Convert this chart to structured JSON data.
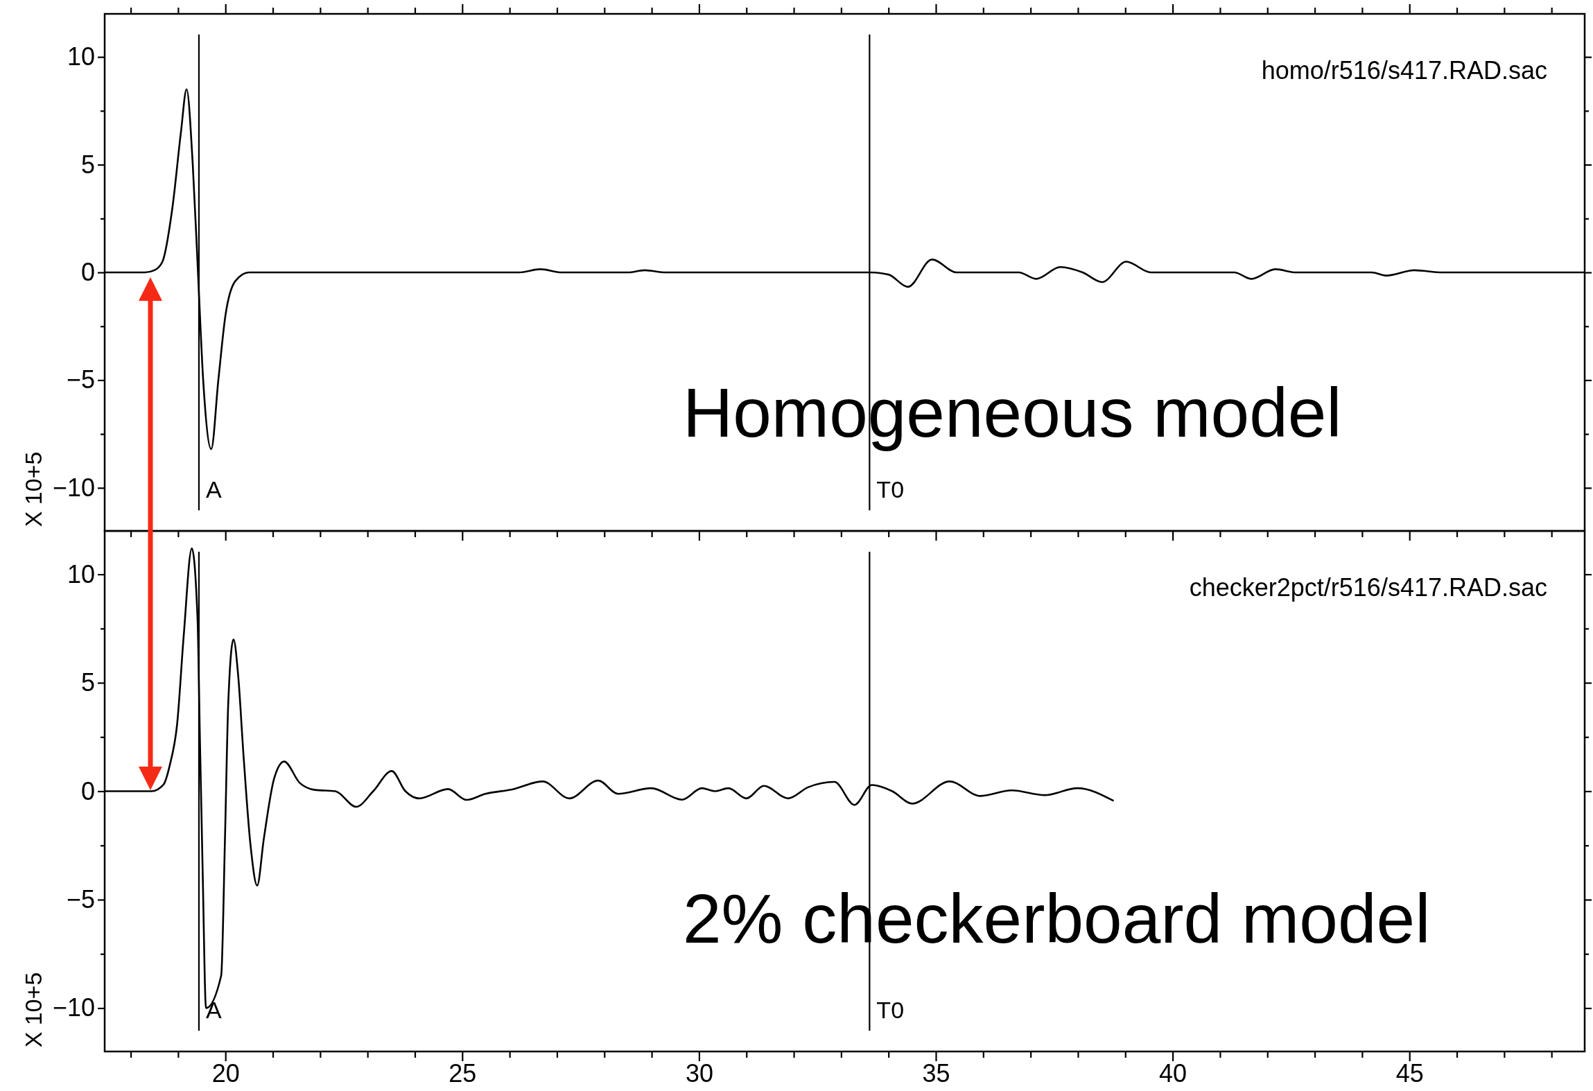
{
  "chart_data": [
    {
      "type": "line",
      "ylabel": "X 10+5",
      "tick_labels": "y",
      "xlim": [
        17.45,
        48.7
      ],
      "xticks": [
        {
          "value": 18,
          "label": null
        },
        {
          "value": 19,
          "label": null
        },
        20,
        {
          "value": 21,
          "label": null
        },
        {
          "value": 22,
          "label": null
        },
        {
          "value": 23,
          "label": null
        },
        {
          "value": 24,
          "label": null
        },
        25,
        {
          "value": 26,
          "label": null
        },
        {
          "value": 27,
          "label": null
        },
        {
          "value": 28,
          "label": null
        },
        {
          "value": 29,
          "label": null
        },
        30,
        {
          "value": 31,
          "label": null
        },
        {
          "value": 32,
          "label": null
        },
        {
          "value": 33,
          "label": null
        },
        {
          "value": 34,
          "label": null
        },
        35,
        {
          "value": 36,
          "label": null
        },
        {
          "value": 37,
          "label": null
        },
        {
          "value": 38,
          "label": null
        },
        {
          "value": 39,
          "label": null
        },
        40,
        {
          "value": 41,
          "label": null
        },
        {
          "value": 42,
          "label": null
        },
        {
          "value": 43,
          "label": null
        },
        {
          "value": 44,
          "label": null
        },
        45,
        {
          "value": 46,
          "label": null
        },
        {
          "value": 47,
          "label": null
        },
        {
          "value": 48,
          "label": null
        }
      ],
      "ylim": [
        -12,
        12
      ],
      "yticks": [
        -10,
        {
          "value": -7.5,
          "label": null
        },
        -5,
        {
          "value": -2.5,
          "label": null
        },
        0,
        {
          "value": 2.5,
          "label": null
        },
        5,
        {
          "value": 7.5,
          "label": null
        },
        10
      ],
      "annotations": [
        "homo/r516/s417.RAD.sac",
        "Homogeneous model"
      ],
      "ref_lines": [
        {
          "axis": "x",
          "value": 19.44,
          "label": "A"
        },
        {
          "axis": "x",
          "value": 33.6,
          "label": "T0"
        }
      ],
      "series": [
        {
          "color": "#000000",
          "x": [
            17.45,
            18.3,
            18.5,
            18.67,
            18.88,
            19.06,
            19.18,
            19.31,
            19.42,
            19.53,
            19.7,
            19.85,
            20.0,
            20.21,
            20.5,
            26.2,
            26.65,
            27.1,
            28.5,
            28.85,
            29.3,
            33.6,
            34.0,
            34.41,
            34.92,
            35.44,
            36.75,
            37.12,
            37.63,
            38.1,
            38.51,
            39.02,
            39.54,
            41.3,
            41.66,
            42.17,
            42.6,
            44.2,
            44.51,
            45.1,
            45.7,
            48.7
          ],
          "values": [
            0,
            0,
            0.1,
            0.5,
            3,
            6.5,
            8.5,
            5,
            0,
            -5,
            -8.2,
            -5,
            -2,
            -0.4,
            0,
            0,
            0.15,
            0,
            0,
            0.1,
            0,
            0,
            -0.1,
            -0.67,
            0.6,
            0,
            0,
            -0.3,
            0.25,
            0,
            -0.45,
            0.5,
            0,
            0,
            -0.3,
            0.15,
            0,
            0,
            -0.15,
            0.1,
            0,
            0
          ]
        }
      ]
    },
    {
      "type": "line",
      "ylabel": "X 10+5",
      "xlim": [
        17.45,
        48.7
      ],
      "xticks": [
        {
          "value": 18,
          "label": null
        },
        {
          "value": 19,
          "label": null
        },
        20,
        {
          "value": 21,
          "label": null
        },
        {
          "value": 22,
          "label": null
        },
        {
          "value": 23,
          "label": null
        },
        {
          "value": 24,
          "label": null
        },
        25,
        {
          "value": 26,
          "label": null
        },
        {
          "value": 27,
          "label": null
        },
        {
          "value": 28,
          "label": null
        },
        {
          "value": 29,
          "label": null
        },
        30,
        {
          "value": 31,
          "label": null
        },
        {
          "value": 32,
          "label": null
        },
        {
          "value": 33,
          "label": null
        },
        {
          "value": 34,
          "label": null
        },
        35,
        {
          "value": 36,
          "label": null
        },
        {
          "value": 37,
          "label": null
        },
        {
          "value": 38,
          "label": null
        },
        {
          "value": 39,
          "label": null
        },
        40,
        {
          "value": 41,
          "label": null
        },
        {
          "value": 42,
          "label": null
        },
        {
          "value": 43,
          "label": null
        },
        {
          "value": 44,
          "label": null
        },
        45,
        {
          "value": 46,
          "label": null
        },
        {
          "value": 47,
          "label": null
        },
        {
          "value": 48,
          "label": null
        }
      ],
      "ylim": [
        -12,
        12
      ],
      "yticks": [
        -10,
        {
          "value": -7.5,
          "label": null
        },
        -5,
        {
          "value": -2.5,
          "label": null
        },
        0,
        {
          "value": 2.5,
          "label": null
        },
        5,
        {
          "value": 7.5,
          "label": null
        },
        10
      ],
      "annotations": [
        "checker2pct/r516/s417.RAD.sac",
        "2% checkerboard model"
      ],
      "ref_lines": [
        {
          "axis": "x",
          "value": 19.44,
          "label": "A"
        },
        {
          "axis": "x",
          "value": 33.6,
          "label": "T0"
        }
      ],
      "series": [
        {
          "color": "#000000",
          "x": [
            17.45,
            18.44,
            18.69,
            18.83,
            18.98,
            19.12,
            19.29,
            19.41,
            19.46,
            19.52,
            19.59,
            19.66,
            19.76,
            19.91,
            19.99,
            20.06,
            20.17,
            20.27,
            20.38,
            20.53,
            20.67,
            20.81,
            21.03,
            21.24,
            21.57,
            21.89,
            22.32,
            22.76,
            23.12,
            23.51,
            23.8,
            24.09,
            24.7,
            25.09,
            25.49,
            26.05,
            26.7,
            27.26,
            27.87,
            28.29,
            28.99,
            29.64,
            30.06,
            30.34,
            30.62,
            31.0,
            31.37,
            31.88,
            32.3,
            32.86,
            33.28,
            33.65,
            34.08,
            34.5,
            35.29,
            35.94,
            36.6,
            37.3,
            37.99,
            38.74
          ],
          "values": [
            0,
            0,
            0.3,
            1.25,
            3.1,
            7.2,
            11.2,
            8,
            2.5,
            -3.8,
            -10,
            null,
            null,
            -8.5,
            -2.2,
            4.1,
            7.0,
            5.3,
            1.7,
            -2.5,
            -4.35,
            -2.2,
            0.6,
            1.37,
            0.38,
            0.06,
            0,
            -0.72,
            0,
            0.93,
            0,
            -0.33,
            0.1,
            -0.4,
            -0.12,
            0.08,
            0.45,
            -0.33,
            0.49,
            -0.12,
            0.14,
            -0.39,
            0.14,
            0,
            0.14,
            -0.33,
            0.25,
            -0.33,
            0.18,
            0.43,
            -0.63,
            0.29,
            0,
            -0.57,
            0.45,
            -0.22,
            0.04,
            -0.18,
            0.14,
            -0.43
          ]
        }
      ]
    }
  ]
}
